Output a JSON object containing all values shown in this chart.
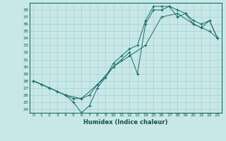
{
  "xlabel": "Humidex (Indice chaleur)",
  "bg_color": "#c8e8e8",
  "grid_color": "#a8d0d0",
  "line_color": "#1a6b6b",
  "xlim": [
    -0.5,
    23.5
  ],
  "ylim": [
    23.5,
    39.0
  ],
  "xticks": [
    0,
    1,
    2,
    3,
    4,
    5,
    6,
    7,
    8,
    9,
    10,
    11,
    12,
    13,
    14,
    15,
    16,
    17,
    18,
    19,
    20,
    21,
    22,
    23
  ],
  "yticks": [
    24,
    25,
    26,
    27,
    28,
    29,
    30,
    31,
    32,
    33,
    34,
    35,
    36,
    37,
    38
  ],
  "line1_x": [
    0,
    1,
    2,
    3,
    4,
    5,
    6,
    7,
    8,
    9,
    10,
    11,
    12,
    13,
    14,
    15,
    16,
    17,
    18,
    19,
    20,
    21,
    22,
    23
  ],
  "line1_y": [
    28,
    27.5,
    27,
    26.5,
    26,
    25.5,
    25.5,
    26,
    27.5,
    28.5,
    30.5,
    31.5,
    32.5,
    33,
    36.5,
    38.5,
    38.5,
    38.5,
    38,
    37.5,
    36.5,
    36,
    36.5,
    34
  ],
  "line2_x": [
    0,
    1,
    2,
    3,
    4,
    5,
    6,
    7,
    8,
    9,
    10,
    11,
    12,
    13,
    14,
    15,
    16,
    17,
    18,
    19,
    20,
    21,
    22,
    23
  ],
  "line2_y": [
    28,
    27.5,
    27,
    26.5,
    26,
    25,
    23.5,
    24.5,
    27,
    28.5,
    30,
    31,
    32,
    29,
    36,
    38,
    38,
    38.5,
    37,
    37.5,
    36,
    35.5,
    35,
    34
  ],
  "line3_x": [
    0,
    2,
    4,
    6,
    8,
    10,
    12,
    14,
    16,
    18,
    20,
    21,
    22,
    23
  ],
  "line3_y": [
    28,
    27,
    26,
    25.5,
    27.5,
    30,
    31.5,
    33,
    37,
    37.5,
    36,
    35.5,
    36.5,
    34
  ]
}
